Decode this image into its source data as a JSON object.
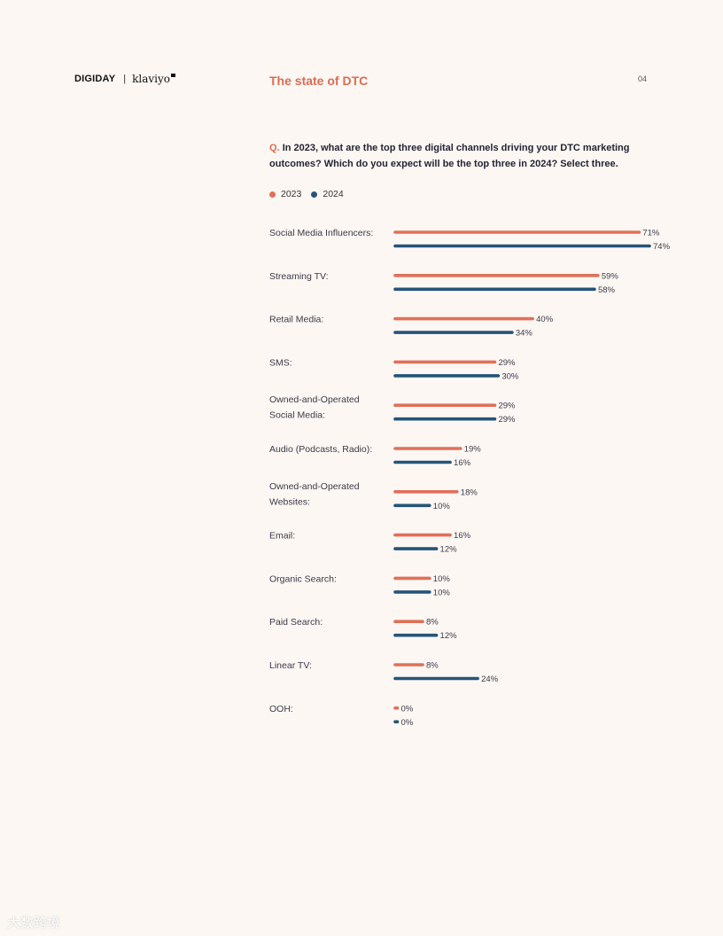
{
  "header": {
    "brand_primary": "DIGIDAY",
    "brand_separator": "|",
    "brand_partner": "klaviyo",
    "title": "The state of DTC",
    "page_number": "04"
  },
  "question": {
    "prefix": "Q.",
    "text": "In 2023, what are the top three digital channels driving your DTC marketing outcomes? Which do you expect will be the top three in 2024? Select three."
  },
  "watermark": "大数跨境",
  "colors": {
    "2023": "#e0705a",
    "2024": "#255478",
    "title": "#dd6b52"
  },
  "chart_data": {
    "type": "bar",
    "orientation": "horizontal",
    "categories": [
      [
        "Social Media Influencers:"
      ],
      [
        "Streaming TV:"
      ],
      [
        "Retail Media:"
      ],
      [
        "SMS:"
      ],
      [
        "Owned-and-Operated",
        "Social Media:"
      ],
      [
        "Audio (Podcasts, Radio):"
      ],
      [
        "Owned-and-Operated",
        "Websites:"
      ],
      [
        "Email:"
      ],
      [
        "Organic Search:"
      ],
      [
        "Paid Search:"
      ],
      [
        "Linear TV:"
      ],
      [
        "OOH:"
      ]
    ],
    "series": [
      {
        "name": "2023",
        "color": "#e0705a",
        "values": [
          71,
          59,
          40,
          29,
          29,
          19,
          18,
          16,
          10,
          8,
          8,
          0
        ]
      },
      {
        "name": "2024",
        "color": "#255478",
        "values": [
          74,
          58,
          34,
          30,
          29,
          16,
          10,
          12,
          10,
          12,
          24,
          0
        ]
      }
    ],
    "value_suffix": "%",
    "xlim": [
      0,
      74
    ],
    "grid": false,
    "legend_position": "top-left"
  }
}
